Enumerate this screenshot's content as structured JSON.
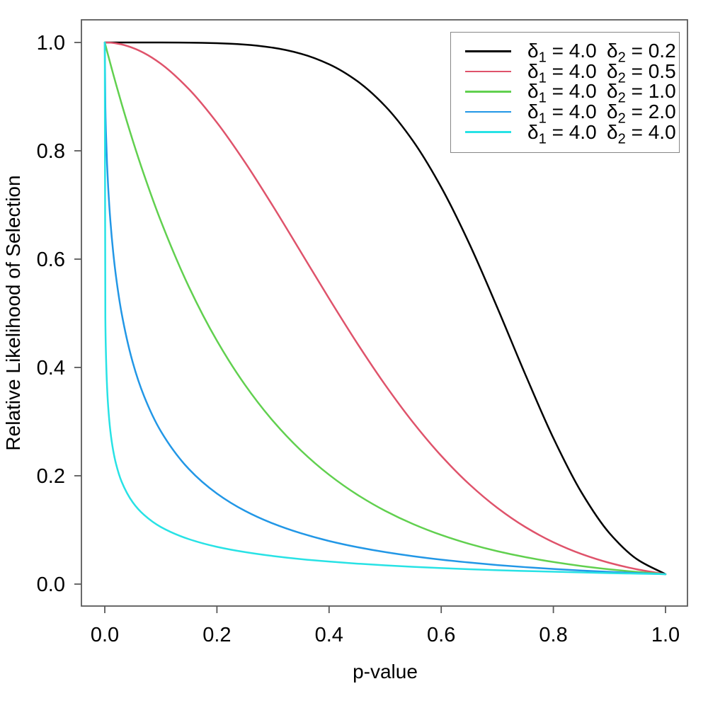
{
  "figure": {
    "background": "#ffffff",
    "box_color": "#5a5a5a",
    "legend_border_color": "#868686"
  },
  "axes": {
    "x": {
      "title": "p-value",
      "tick_values": [
        0.0,
        0.2,
        0.4,
        0.6,
        0.8,
        1.0
      ],
      "tick_labels": [
        "0.0",
        "0.2",
        "0.4",
        "0.6",
        "0.8",
        "1.0"
      ],
      "range": [
        0,
        1
      ]
    },
    "y": {
      "title": "Relative Likelihood of Selection",
      "tick_values": [
        0.0,
        0.2,
        0.4,
        0.6,
        0.8,
        1.0
      ],
      "tick_labels": [
        "0.0",
        "0.2",
        "0.4",
        "0.6",
        "0.8",
        "1.0"
      ],
      "range": [
        0,
        1
      ]
    }
  },
  "legend": {
    "items": [
      {
        "color": "#000000",
        "p1": {
          "base": "δ",
          "sub": "1",
          "rest": " = 4.0"
        },
        "p2": {
          "base": "δ",
          "sub": "2",
          "rest": " = 0.2"
        }
      },
      {
        "color": "#DF536B",
        "p1": {
          "base": "δ",
          "sub": "1",
          "rest": " = 4.0"
        },
        "p2": {
          "base": "δ",
          "sub": "2",
          "rest": " = 0.5"
        }
      },
      {
        "color": "#61D04F",
        "p1": {
          "base": "δ",
          "sub": "1",
          "rest": " = 4.0"
        },
        "p2": {
          "base": "δ",
          "sub": "2",
          "rest": " = 1.0"
        }
      },
      {
        "color": "#2297E6",
        "p1": {
          "base": "δ",
          "sub": "1",
          "rest": " = 4.0"
        },
        "p2": {
          "base": "δ",
          "sub": "2",
          "rest": " = 2.0"
        }
      },
      {
        "color": "#28E2E5",
        "p1": {
          "base": "δ",
          "sub": "1",
          "rest": " = 4.0"
        },
        "p2": {
          "base": "δ",
          "sub": "2",
          "rest": " = 4.0"
        }
      }
    ]
  },
  "chart_data": {
    "type": "line",
    "title": "",
    "xlabel": "p-value",
    "ylabel": "Relative Likelihood of Selection",
    "xlim": [
      0,
      1
    ],
    "ylim": [
      0,
      1
    ],
    "grid": false,
    "legend_position": "top-right",
    "x": [
      0,
      0.001,
      0.002,
      0.004,
      0.006,
      0.01,
      0.015,
      0.02,
      0.03,
      0.05,
      0.07,
      0.1,
      0.15,
      0.2,
      0.25,
      0.3,
      0.35,
      0.4,
      0.45,
      0.5,
      0.55,
      0.6,
      0.65,
      0.7,
      0.75,
      0.8,
      0.85,
      0.9,
      0.95,
      1.0
    ],
    "series": [
      {
        "name": "δ1 = 4.0  δ2 = 0.2",
        "delta1": 4.0,
        "delta2": 0.2,
        "color": "#000000",
        "values": [
          1,
          1,
          1,
          1,
          1,
          1,
          1,
          1,
          1,
          1,
          1,
          1,
          0.9997,
          0.9987,
          0.9961,
          0.9903,
          0.9792,
          0.9598,
          0.9289,
          0.8826,
          0.8177,
          0.7327,
          0.6287,
          0.5105,
          0.387,
          0.2696,
          0.1695,
          0.0941,
          0.0453,
          0.0183
        ]
      },
      {
        "name": "δ1 = 4.0  δ2 = 0.5",
        "delta1": 4.0,
        "delta2": 0.5,
        "color": "#DF536B",
        "values": [
          1,
          1,
          1,
          0.9999,
          0.9999,
          0.9996,
          0.9991,
          0.9984,
          0.9964,
          0.99,
          0.9806,
          0.9608,
          0.9139,
          0.8521,
          0.7788,
          0.6977,
          0.6126,
          0.5273,
          0.4449,
          0.3679,
          0.2982,
          0.2369,
          0.1845,
          0.1409,
          0.1054,
          0.0773,
          0.0556,
          0.0392,
          0.0271,
          0.0183
        ]
      },
      {
        "name": "δ1 = 4.0  δ2 = 1.0",
        "delta1": 4.0,
        "delta2": 1.0,
        "color": "#61D04F",
        "values": [
          1,
          0.996,
          0.992,
          0.9841,
          0.9763,
          0.9608,
          0.9418,
          0.9231,
          0.8869,
          0.8187,
          0.7558,
          0.6703,
          0.5488,
          0.4493,
          0.3679,
          0.3012,
          0.2466,
          0.2019,
          0.1653,
          0.1353,
          0.1108,
          0.0907,
          0.0743,
          0.0608,
          0.0498,
          0.0408,
          0.0334,
          0.0273,
          0.0224,
          0.0183
        ]
      },
      {
        "name": "δ1 = 4.0  δ2 = 2.0",
        "delta1": 4.0,
        "delta2": 2.0,
        "color": "#2297E6",
        "values": [
          1,
          0.8812,
          0.8362,
          0.7765,
          0.7336,
          0.6703,
          0.6127,
          0.568,
          0.5002,
          0.4089,
          0.3471,
          0.2822,
          0.2124,
          0.1672,
          0.1353,
          0.1118,
          0.0938,
          0.0796,
          0.0683,
          0.0591,
          0.0515,
          0.0451,
          0.0398,
          0.0352,
          0.0313,
          0.0279,
          0.025,
          0.0225,
          0.0203,
          0.0183
        ]
      },
      {
        "name": "δ1 = 4.0  δ2 = 4.0",
        "delta1": 4.0,
        "delta2": 4.0,
        "color": "#28E2E5",
        "values": [
          1,
          0.491,
          0.4292,
          0.3657,
          0.3285,
          0.2822,
          0.2466,
          0.2222,
          0.1892,
          0.1508,
          0.1278,
          0.1054,
          0.083,
          0.0688,
          0.0591,
          0.0518,
          0.0461,
          0.0416,
          0.0378,
          0.0346,
          0.0319,
          0.0296,
          0.0275,
          0.0257,
          0.0242,
          0.0228,
          0.0215,
          0.0203,
          0.0193,
          0.0183
        ]
      }
    ]
  }
}
